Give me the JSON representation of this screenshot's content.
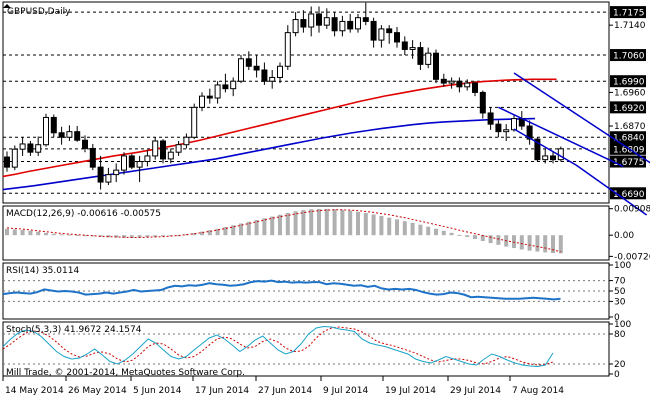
{
  "chart_data": {
    "type": "candlestick",
    "symbol_label": "GBPUSD,Daily",
    "footer": "Mill Trade, © 2001-2014, MetaQuotes Software Corp.",
    "date_ticks": [
      "14 May 2014",
      "26 May 2014",
      "5 Jun 2014",
      "17 Jun 2014",
      "27 Jun 2014",
      "9 Jul 2014",
      "19 Jul 2014",
      "29 Jul 2014",
      "7 Aug 2014"
    ],
    "price_axis": {
      "ylim": [
        1.6664,
        1.7202
      ],
      "ticks": [
        "1.7140",
        "1.6960",
        "1.6870"
      ],
      "tagged_levels": [
        {
          "label": "1.7175",
          "value": 1.7175
        },
        {
          "label": "1.7060",
          "value": 1.706
        },
        {
          "label": "1.6990",
          "value": 1.699
        },
        {
          "label": "1.6920",
          "value": 1.692
        },
        {
          "label": "1.6840",
          "value": 1.684
        },
        {
          "label": "1.6809",
          "value": 1.6809
        },
        {
          "label": "1.6775",
          "value": 1.6775
        },
        {
          "label": "1.6690",
          "value": 1.669
        }
      ]
    },
    "candles": [
      [
        1.6787,
        1.6802,
        1.6748,
        1.676
      ],
      [
        1.676,
        1.6818,
        1.6752,
        1.6808
      ],
      [
        1.6808,
        1.684,
        1.679,
        1.6822
      ],
      [
        1.6822,
        1.683,
        1.679,
        1.68
      ],
      [
        1.68,
        1.6842,
        1.679,
        1.682
      ],
      [
        1.682,
        1.6903,
        1.6815,
        1.6893
      ],
      [
        1.6893,
        1.6901,
        1.684,
        1.6852
      ],
      [
        1.6852,
        1.6868,
        1.682,
        1.684
      ],
      [
        1.684,
        1.6872,
        1.683,
        1.6855
      ],
      [
        1.6855,
        1.687,
        1.6828,
        1.6832
      ],
      [
        1.6832,
        1.6845,
        1.68,
        1.681
      ],
      [
        1.681,
        1.6822,
        1.6752,
        1.676
      ],
      [
        1.676,
        1.679,
        1.67,
        1.672
      ],
      [
        1.672,
        1.6758,
        1.6712,
        1.674
      ],
      [
        1.674,
        1.677,
        1.672,
        1.6752
      ],
      [
        1.6752,
        1.68,
        1.674,
        1.679
      ],
      [
        1.679,
        1.6795,
        1.6755,
        1.676
      ],
      [
        1.676,
        1.679,
        1.672,
        1.6775
      ],
      [
        1.6775,
        1.6805,
        1.6762,
        1.679
      ],
      [
        1.679,
        1.684,
        1.678,
        1.683
      ],
      [
        1.683,
        1.6835,
        1.677,
        1.6782
      ],
      [
        1.6782,
        1.681,
        1.677,
        1.68
      ],
      [
        1.68,
        1.683,
        1.679,
        1.682
      ],
      [
        1.682,
        1.685,
        1.681,
        1.684
      ],
      [
        1.684,
        1.693,
        1.6835,
        1.692
      ],
      [
        1.692,
        1.696,
        1.691,
        1.695
      ],
      [
        1.695,
        1.697,
        1.693,
        1.6945
      ],
      [
        1.6945,
        1.699,
        1.693,
        1.698
      ],
      [
        1.698,
        1.701,
        1.696,
        1.697
      ],
      [
        1.697,
        1.7,
        1.695,
        1.699
      ],
      [
        1.699,
        1.706,
        1.6985,
        1.705
      ],
      [
        1.705,
        1.707,
        1.702,
        1.703
      ],
      [
        1.703,
        1.706,
        1.7,
        1.702
      ],
      [
        1.702,
        1.704,
        1.698,
        1.699
      ],
      [
        1.699,
        1.702,
        1.697,
        1.7
      ],
      [
        1.7,
        1.704,
        1.6985,
        1.703
      ],
      [
        1.703,
        1.714,
        1.702,
        1.712
      ],
      [
        1.712,
        1.7175,
        1.711,
        1.7155
      ],
      [
        1.7155,
        1.718,
        1.712,
        1.7135
      ],
      [
        1.7135,
        1.719,
        1.711,
        1.717
      ],
      [
        1.717,
        1.719,
        1.712,
        1.714
      ],
      [
        1.714,
        1.7185,
        1.713,
        1.716
      ],
      [
        1.716,
        1.7175,
        1.711,
        1.7125
      ],
      [
        1.7125,
        1.7165,
        1.711,
        1.715
      ],
      [
        1.715,
        1.717,
        1.712,
        1.713
      ],
      [
        1.713,
        1.717,
        1.712,
        1.716
      ],
      [
        1.716,
        1.72,
        1.714,
        1.715
      ],
      [
        1.715,
        1.716,
        1.708,
        1.71
      ],
      [
        1.71,
        1.714,
        1.708,
        1.713
      ],
      [
        1.713,
        1.714,
        1.709,
        1.712
      ],
      [
        1.712,
        1.7135,
        1.708,
        1.7095
      ],
      [
        1.7095,
        1.711,
        1.706,
        1.7075
      ],
      [
        1.7075,
        1.71,
        1.705,
        1.708
      ],
      [
        1.708,
        1.7095,
        1.702,
        1.7035
      ],
      [
        1.7035,
        1.708,
        1.7025,
        1.7065
      ],
      [
        1.7065,
        1.7075,
        1.6985,
        1.6995
      ],
      [
        1.6995,
        1.701,
        1.6975,
        1.6985
      ],
      [
        1.6985,
        1.7,
        1.697,
        1.699
      ],
      [
        1.699,
        1.7,
        1.696,
        1.6975
      ],
      [
        1.6975,
        1.6995,
        1.6965,
        1.6985
      ],
      [
        1.6985,
        1.699,
        1.695,
        1.696
      ],
      [
        1.696,
        1.6965,
        1.689,
        1.6905
      ],
      [
        1.6905,
        1.692,
        1.686,
        1.6875
      ],
      [
        1.6875,
        1.6885,
        1.684,
        1.6855
      ],
      [
        1.6855,
        1.6875,
        1.683,
        1.686
      ],
      [
        1.686,
        1.69,
        1.6855,
        1.689
      ],
      [
        1.689,
        1.691,
        1.686,
        1.687
      ],
      [
        1.687,
        1.6885,
        1.682,
        1.6835
      ],
      [
        1.6835,
        1.684,
        1.6775,
        1.678
      ],
      [
        1.678,
        1.681,
        1.677,
        1.679
      ],
      [
        1.679,
        1.68,
        1.677,
        1.678
      ],
      [
        1.678,
        1.6815,
        1.6775,
        1.6809
      ]
    ],
    "ma_red": [
      1.6735,
      1.6741,
      1.6748,
      1.6754,
      1.676,
      1.6766,
      1.6772,
      1.6778,
      1.6784,
      1.679,
      1.6795,
      1.68,
      1.6806,
      1.6812,
      1.6818,
      1.6825,
      1.6832,
      1.684,
      1.6848,
      1.6856,
      1.6864,
      1.6872,
      1.688,
      1.6888,
      1.6896,
      1.6904,
      1.6912,
      1.692,
      1.6928,
      1.6936,
      1.6943,
      1.695,
      1.6956,
      1.6962,
      1.6968,
      1.6973,
      1.6978,
      1.6982,
      1.6986,
      1.6989,
      1.6991,
      1.6993,
      1.6994,
      1.6995,
      1.6995,
      1.6995
    ],
    "ma_blue": [
      1.67,
      1.6705,
      1.671,
      1.6716,
      1.6722,
      1.6728,
      1.6734,
      1.674,
      1.6746,
      1.6752,
      1.6758,
      1.6764,
      1.677,
      1.6776,
      1.6782,
      1.679,
      1.6798,
      1.6806,
      1.6814,
      1.6822,
      1.683,
      1.6838,
      1.6845,
      1.6852,
      1.6858,
      1.6864,
      1.6869,
      1.6874,
      1.6878,
      1.6881,
      1.6883,
      1.6885,
      1.6887,
      1.6888,
      1.6889,
      1.689
    ],
    "channel": {
      "upper": [
        [
          65,
          1.7012
        ],
        [
          90,
          1.6668
        ]
      ],
      "lower": [
        [
          65,
          1.6862
        ],
        [
          73,
          1.6765
        ],
        [
          82,
          1.6632
        ]
      ],
      "mid": [
        [
          63,
          1.692
        ],
        [
          79,
          1.6762
        ]
      ]
    },
    "macd": {
      "label": "MACD(12,26,9) -0.00616 -0.00575",
      "ylim": [
        -0.0085,
        0.01
      ],
      "ticks": [
        "0.00908",
        "0.00",
        "-0.00726"
      ],
      "histogram": [
        0.0022,
        0.002,
        0.0018,
        0.0015,
        0.0012,
        0.0008,
        0.0005,
        0.0003,
        0.0002,
        0.0001,
        -0.0001,
        -0.0003,
        -0.0005,
        -0.0007,
        -0.0008,
        -0.0009,
        -0.0009,
        -0.0008,
        -0.0007,
        -0.0006,
        -0.0004,
        -0.0002,
        0.0,
        0.0003,
        0.0007,
        0.0012,
        0.0017,
        0.0022,
        0.0028,
        0.0034,
        0.004,
        0.0046,
        0.0052,
        0.0058,
        0.0064,
        0.007,
        0.0076,
        0.0082,
        0.0086,
        0.0089,
        0.009,
        0.009,
        0.0089,
        0.0087,
        0.0084,
        0.008,
        0.0076,
        0.0071,
        0.0066,
        0.006,
        0.0054,
        0.0048,
        0.0042,
        0.0036,
        0.0029,
        0.0022,
        0.0015,
        0.0008,
        0.0001,
        -0.0006,
        -0.0013,
        -0.002,
        -0.0027,
        -0.0033,
        -0.0039,
        -0.0044,
        -0.0049,
        -0.0053,
        -0.0056,
        -0.0059,
        -0.0061,
        -0.0062
      ],
      "signal": [
        0.0025,
        0.0023,
        0.0021,
        0.0018,
        0.0015,
        0.0012,
        0.0009,
        0.0006,
        0.0004,
        0.0002,
        0.0,
        -0.0002,
        -0.0004,
        -0.0005,
        -0.0006,
        -0.0007,
        -0.0008,
        -0.0008,
        -0.0007,
        -0.0006,
        -0.0005,
        -0.0003,
        -0.0001,
        0.0002,
        0.0005,
        0.0009,
        0.0013,
        0.0018,
        0.0023,
        0.0028,
        0.0034,
        0.004,
        0.0046,
        0.0052,
        0.0058,
        0.0063,
        0.0068,
        0.0073,
        0.0077,
        0.0081,
        0.0084,
        0.0086,
        0.0087,
        0.0087,
        0.0086,
        0.0084,
        0.0081,
        0.0078,
        0.0074,
        0.007,
        0.0065,
        0.006,
        0.0054,
        0.0048,
        0.0042,
        0.0036,
        0.003,
        0.0024,
        0.0017,
        0.0011,
        0.0005,
        -0.0001,
        -0.0007,
        -0.0013,
        -0.0019,
        -0.0024,
        -0.0029,
        -0.0034,
        -0.0039,
        -0.0044,
        -0.005,
        -0.0057
      ]
    },
    "rsi": {
      "label": "RSI(14) 35.0114",
      "ylim": [
        0,
        100
      ],
      "levels": [
        70,
        50,
        30
      ],
      "ticks": [
        "100",
        "70",
        "50",
        "30",
        "0"
      ],
      "values": [
        44,
        46,
        47,
        46,
        45,
        48,
        53,
        51,
        49,
        50,
        49,
        47,
        43,
        44,
        45,
        47,
        45,
        47,
        49,
        52,
        49,
        50,
        51,
        52,
        57,
        60,
        59,
        61,
        60,
        62,
        65,
        63,
        62,
        60,
        61,
        63,
        67,
        69,
        68,
        70,
        67,
        68,
        66,
        67,
        66,
        67,
        67,
        63,
        65,
        64,
        62,
        60,
        61,
        58,
        60,
        55,
        53,
        54,
        53,
        54,
        52,
        48,
        45,
        43,
        44,
        47,
        46,
        43,
        38,
        39,
        38,
        37,
        36,
        35,
        35,
        35,
        36,
        37,
        36,
        35,
        34,
        35
      ]
    },
    "stoch": {
      "label": "Stoch(5,3,3) 41.9672 24.1574",
      "ylim": [
        0,
        100
      ],
      "levels": [
        80,
        20
      ],
      "ticks": [
        "100",
        "80",
        "20",
        "0"
      ],
      "main": [
        55,
        70,
        82,
        88,
        85,
        75,
        60,
        45,
        35,
        30,
        32,
        40,
        50,
        38,
        25,
        20,
        28,
        40,
        55,
        70,
        62,
        48,
        35,
        30,
        35,
        48,
        60,
        72,
        78,
        70,
        58,
        45,
        55,
        68,
        76,
        62,
        48,
        40,
        45,
        60,
        80,
        92,
        95,
        94,
        90,
        88,
        85,
        70,
        62,
        58,
        55,
        50,
        45,
        40,
        30,
        25,
        22,
        28,
        35,
        30,
        25,
        20,
        18,
        30,
        40,
        35,
        28,
        22,
        18,
        16,
        15,
        18,
        42
      ],
      "signal": [
        50,
        60,
        72,
        82,
        86,
        84,
        76,
        64,
        50,
        40,
        34,
        36,
        42,
        44,
        40,
        30,
        24,
        28,
        40,
        55,
        62,
        60,
        50,
        38,
        32,
        35,
        45,
        58,
        70,
        74,
        70,
        60,
        52,
        55,
        65,
        70,
        64,
        52,
        45,
        46,
        55,
        72,
        85,
        92,
        94,
        92,
        90,
        84,
        75,
        65,
        60,
        57,
        52,
        47,
        42,
        35,
        28,
        24,
        27,
        30,
        30,
        27,
        22,
        20,
        25,
        32,
        35,
        30,
        24,
        20,
        18,
        19,
        24
      ]
    }
  }
}
